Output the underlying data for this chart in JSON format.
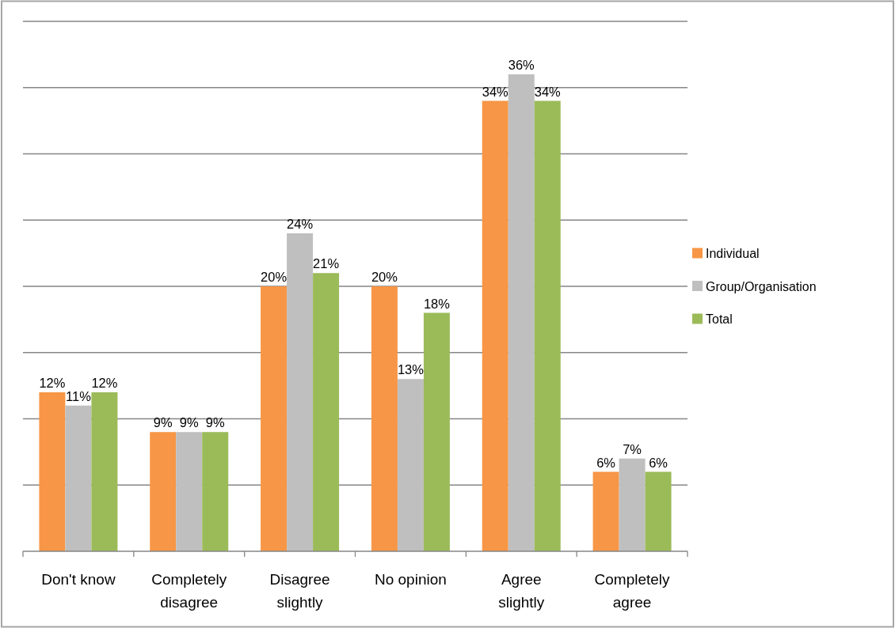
{
  "chart_data": {
    "type": "bar",
    "categories": [
      "Don't know",
      "Completely disagree",
      "Disagree slightly",
      "No opinion",
      "Agree slightly",
      "Completely agree"
    ],
    "series": [
      {
        "name": "Individual",
        "color": "#f79646",
        "values": [
          12,
          9,
          20,
          20,
          34,
          6
        ],
        "value_labels": [
          "12%",
          "9%",
          "20%",
          "20%",
          "34%",
          "6%"
        ]
      },
      {
        "name": "Group/Organisation",
        "color": "#bfbfbf",
        "values": [
          11,
          9,
          24,
          13,
          36,
          7
        ],
        "value_labels": [
          "11%",
          "9%",
          "24%",
          "13%",
          "36%",
          "7%"
        ]
      },
      {
        "name": "Total",
        "color": "#9bbb59",
        "values": [
          12,
          9,
          21,
          18,
          34,
          6
        ],
        "value_labels": [
          "12%",
          "9%",
          "21%",
          "18%",
          "34%",
          "6%"
        ]
      }
    ],
    "ylim": [
      0,
      40
    ],
    "yticks": [
      {
        "value": 5,
        "label": null
      },
      {
        "value": 10,
        "label": null
      },
      {
        "value": 15,
        "label": null
      },
      {
        "value": 20,
        "label": null
      },
      {
        "value": 25,
        "label": null
      },
      {
        "value": 30,
        "label": null
      },
      {
        "value": 35,
        "label": null
      },
      {
        "value": 40,
        "label": null
      }
    ],
    "grid": true,
    "legend": "right",
    "tick_labels": "x"
  }
}
